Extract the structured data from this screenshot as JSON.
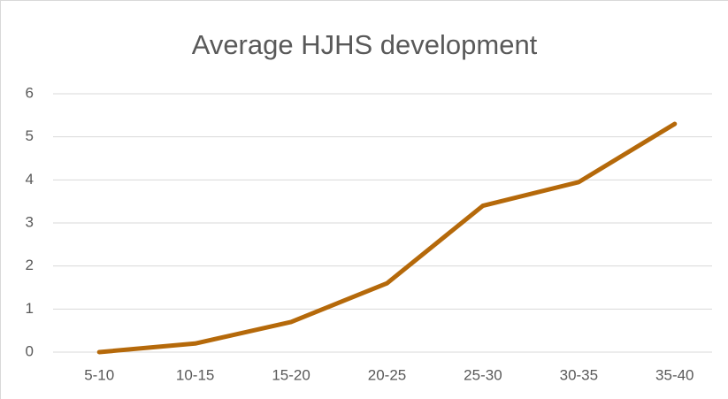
{
  "chart_data": {
    "type": "line",
    "title": "Average HJHS development",
    "categories": [
      "5-10",
      "10-15",
      "15-20",
      "20-25",
      "25-30",
      "30-35",
      "35-40"
    ],
    "series": [
      {
        "name": "Average HJHS development",
        "color": "#b5690a",
        "values": [
          0,
          0.2,
          0.7,
          1.6,
          3.4,
          3.95,
          5.3
        ]
      }
    ],
    "ylim": [
      0,
      6
    ],
    "yticks": [
      0,
      1,
      2,
      3,
      4,
      5,
      6
    ],
    "grid": true
  }
}
